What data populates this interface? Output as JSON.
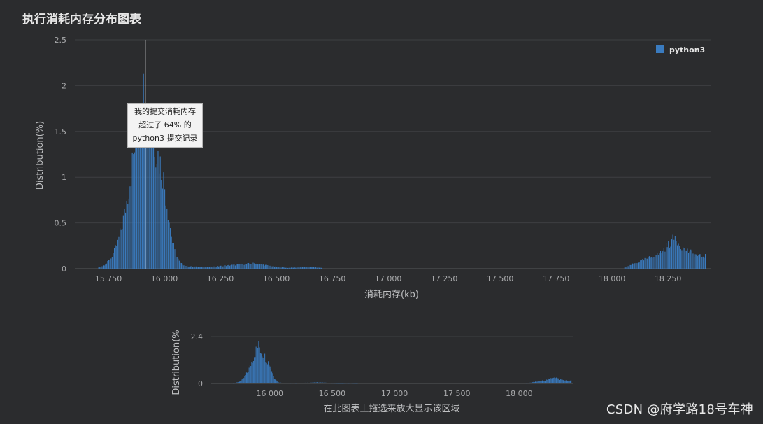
{
  "page": {
    "title": "执行消耗内存分布图表",
    "watermark": "CSDN @府学路18号车神"
  },
  "tooltip": {
    "lines": [
      "我的提交消耗内存",
      "超过了 64% 的",
      "python3 提交记录"
    ]
  },
  "navigator_hint": "在此图表上拖选来放大显示该区域",
  "colors": {
    "background": "#2b2c2e",
    "bar": "#3a7bbf",
    "grid": "#3e3f42",
    "marker": "#d9dadb"
  },
  "chart_data": [
    {
      "type": "bar",
      "title": "",
      "xlabel": "消耗内存(kb)",
      "ylabel": "Distribution(%)",
      "xlim": [
        15600,
        18440
      ],
      "ylim": [
        0,
        2.5
      ],
      "x_ticks": [
        15750,
        16000,
        16250,
        16500,
        16750,
        17000,
        17250,
        17500,
        17750,
        18000,
        18250
      ],
      "x_tick_labels": [
        "15 750",
        "16 000",
        "16 250",
        "16 500",
        "16 750",
        "17 000",
        "17 250",
        "17 500",
        "17 750",
        "18 000",
        "18 250"
      ],
      "y_ticks": [
        0,
        0.5,
        1,
        1.5,
        2,
        2.5
      ],
      "y_tick_labels": [
        "0",
        "0.5",
        "1",
        "1.5",
        "2",
        "2.5"
      ],
      "grid": true,
      "legend": "top-right",
      "marker_x": 15915,
      "series": [
        {
          "name": "python3",
          "points": [
            [
              15700,
              0.01
            ],
            [
              15720,
              0.03
            ],
            [
              15740,
              0.06
            ],
            [
              15760,
              0.12
            ],
            [
              15775,
              0.2
            ],
            [
              15790,
              0.3
            ],
            [
              15805,
              0.45
            ],
            [
              15820,
              0.62
            ],
            [
              15835,
              0.85
            ],
            [
              15850,
              1.1
            ],
            [
              15865,
              1.38
            ],
            [
              15880,
              1.65
            ],
            [
              15895,
              1.9
            ],
            [
              15905,
              2.0
            ],
            [
              15915,
              1.95
            ],
            [
              15930,
              1.7
            ],
            [
              15945,
              1.55
            ],
            [
              15960,
              1.4
            ],
            [
              15975,
              1.25
            ],
            [
              15990,
              1.1
            ],
            [
              16005,
              0.85
            ],
            [
              16020,
              0.55
            ],
            [
              16035,
              0.3
            ],
            [
              16050,
              0.15
            ],
            [
              16070,
              0.06
            ],
            [
              16100,
              0.03
            ],
            [
              16150,
              0.02
            ],
            [
              16200,
              0.02
            ],
            [
              16250,
              0.03
            ],
            [
              16300,
              0.04
            ],
            [
              16350,
              0.05
            ],
            [
              16400,
              0.06
            ],
            [
              16450,
              0.04
            ],
            [
              16500,
              0.02
            ],
            [
              16550,
              0.01
            ],
            [
              16650,
              0.02
            ],
            [
              16700,
              0.01
            ],
            [
              18050,
              0.01
            ],
            [
              18080,
              0.04
            ],
            [
              18110,
              0.07
            ],
            [
              18140,
              0.1
            ],
            [
              18170,
              0.13
            ],
            [
              18200,
              0.16
            ],
            [
              18220,
              0.19
            ],
            [
              18240,
              0.25
            ],
            [
              18260,
              0.3
            ],
            [
              18280,
              0.36
            ],
            [
              18300,
              0.28
            ],
            [
              18320,
              0.22
            ],
            [
              18340,
              0.2
            ],
            [
              18360,
              0.17
            ],
            [
              18380,
              0.15
            ],
            [
              18400,
              0.14
            ],
            [
              18420,
              0.15
            ]
          ]
        }
      ]
    },
    {
      "type": "bar",
      "title": "",
      "xlabel": "",
      "ylabel": "Distribution(%",
      "xlim": [
        15530,
        18430
      ],
      "ylim": [
        0,
        2.4
      ],
      "x_ticks": [
        16000,
        16500,
        17000,
        17500,
        18000
      ],
      "x_tick_labels": [
        "16 000",
        "16 500",
        "17 000",
        "17 500",
        "18 000"
      ],
      "y_ticks": [
        0,
        2.4
      ],
      "y_tick_labels": [
        "0",
        "2.4"
      ],
      "grid": true
    }
  ]
}
